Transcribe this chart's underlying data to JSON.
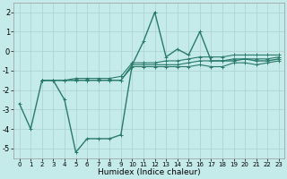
{
  "title": "",
  "xlabel": "Humidex (Indice chaleur)",
  "bg_color": "#c5eaea",
  "grid_color": "#afd4d4",
  "line_color": "#2a7a6a",
  "xlim": [
    -0.5,
    23.5
  ],
  "ylim": [
    -5.5,
    2.5
  ],
  "yticks": [
    -5,
    -4,
    -3,
    -2,
    -1,
    0,
    1,
    2
  ],
  "xticks": [
    0,
    1,
    2,
    3,
    4,
    5,
    6,
    7,
    8,
    9,
    10,
    11,
    12,
    13,
    14,
    15,
    16,
    17,
    18,
    19,
    20,
    21,
    22,
    23
  ],
  "series": [
    [
      0,
      1,
      2,
      3,
      4,
      5,
      6,
      7,
      8,
      9,
      10,
      11,
      12,
      13,
      14,
      15,
      16,
      17,
      18,
      19,
      20,
      21,
      22,
      23
    ],
    [
      -2.7,
      -4.0,
      -1.5,
      -1.5,
      -2.5,
      -5.2,
      -4.5,
      -4.5,
      -4.5,
      -4.3,
      -0.7,
      0.5,
      2.0,
      -0.3,
      0.1,
      -0.2,
      1.0,
      -0.5,
      -0.5,
      -0.5,
      -0.4,
      -0.5,
      -0.5,
      -0.4
    ],
    [
      null,
      null,
      -1.5,
      -1.5,
      -1.5,
      -1.5,
      -1.5,
      -1.5,
      -1.5,
      -1.5,
      -0.8,
      -0.8,
      -0.8,
      -0.8,
      -0.8,
      -0.8,
      -0.7,
      -0.8,
      -0.8,
      -0.6,
      -0.6,
      -0.7,
      -0.6,
      -0.5
    ],
    [
      null,
      null,
      -1.5,
      -1.5,
      -1.5,
      -1.5,
      -1.5,
      -1.5,
      -1.5,
      -1.5,
      -0.7,
      -0.7,
      -0.7,
      -0.7,
      -0.7,
      -0.6,
      -0.5,
      -0.5,
      -0.5,
      -0.4,
      -0.4,
      -0.4,
      -0.4,
      -0.3
    ],
    [
      null,
      null,
      -1.5,
      -1.5,
      -1.5,
      -1.4,
      -1.4,
      -1.4,
      -1.4,
      -1.3,
      -0.6,
      -0.6,
      -0.6,
      -0.5,
      -0.5,
      -0.4,
      -0.3,
      -0.3,
      -0.3,
      -0.2,
      -0.2,
      -0.2,
      -0.2,
      -0.2
    ]
  ]
}
